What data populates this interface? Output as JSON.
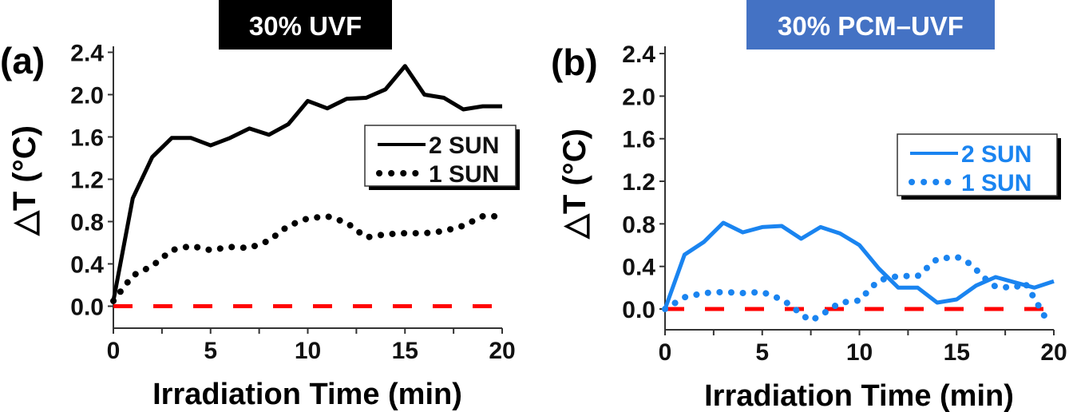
{
  "chart_data": [
    {
      "type": "line",
      "panel_label": "(a)",
      "title": "30% UVF",
      "title_bg": "#000000",
      "title_color": "#ffffff",
      "xlabel": "Irradiation Time (min)",
      "ylabel": "△T (°C)",
      "xlim": [
        0,
        20
      ],
      "ylim": [
        -0.2,
        2.45
      ],
      "xticks": [
        0,
        5,
        10,
        15,
        20
      ],
      "xtick_labels": [
        "0",
        "5",
        "10",
        "15",
        "20"
      ],
      "yticks": [
        0.0,
        0.4,
        0.8,
        1.2,
        1.6,
        2.0,
        2.4
      ],
      "ytick_labels": [
        "0.0",
        "0.4",
        "0.8",
        "1.2",
        "1.6",
        "2.0",
        "2.4"
      ],
      "grid": false,
      "legend_position": "upper-right",
      "reference_line": {
        "y": 0.0,
        "color": "#ff0000",
        "style": "dashed"
      },
      "series": [
        {
          "name": "2 SUN",
          "style": "solid",
          "color": "#000000",
          "x": [
            0,
            1,
            2,
            3,
            4,
            5,
            6,
            7,
            8,
            9,
            10,
            11,
            12,
            13,
            14,
            15,
            16,
            17,
            18,
            19,
            20
          ],
          "y": [
            0.05,
            1.02,
            1.41,
            1.59,
            1.59,
            1.52,
            1.59,
            1.68,
            1.62,
            1.72,
            1.94,
            1.87,
            1.96,
            1.97,
            2.05,
            2.27,
            2.0,
            1.97,
            1.86,
            1.89,
            1.89
          ]
        },
        {
          "name": "1 SUN",
          "style": "dotted",
          "color": "#000000",
          "x": [
            0,
            1,
            2,
            3,
            4,
            5,
            6,
            7,
            8,
            9,
            10,
            11,
            12,
            13,
            14,
            15,
            16,
            17,
            18,
            19,
            20
          ],
          "y": [
            0.05,
            0.29,
            0.38,
            0.53,
            0.57,
            0.53,
            0.56,
            0.55,
            0.62,
            0.76,
            0.83,
            0.85,
            0.79,
            0.65,
            0.68,
            0.69,
            0.69,
            0.71,
            0.76,
            0.85,
            0.85
          ]
        }
      ]
    },
    {
      "type": "line",
      "panel_label": "(b)",
      "title": "30% PCM–UVF",
      "title_bg": "#4472c4",
      "title_color": "#ffffff",
      "xlabel": "Irradiation Time (min)",
      "ylabel": "△T (°C)",
      "xlim": [
        0,
        20
      ],
      "ylim": [
        -0.2,
        2.45
      ],
      "xticks": [
        0,
        5,
        10,
        15,
        20
      ],
      "xtick_labels": [
        "0",
        "5",
        "10",
        "15",
        "20"
      ],
      "yticks": [
        0.0,
        0.4,
        0.8,
        1.2,
        1.6,
        2.0,
        2.4
      ],
      "ytick_labels": [
        "0.0",
        "0.4",
        "0.8",
        "1.2",
        "1.6",
        "2.0",
        "2.4"
      ],
      "grid": false,
      "legend_position": "right",
      "reference_line": {
        "y": 0.0,
        "color": "#ff0000",
        "style": "dashed"
      },
      "series": [
        {
          "name": "2 SUN",
          "style": "solid",
          "color": "#1a84f0",
          "x": [
            0,
            1,
            2,
            3,
            4,
            5,
            6,
            7,
            8,
            9,
            10,
            11,
            12,
            13,
            14,
            15,
            16,
            17,
            18,
            19,
            20
          ],
          "y": [
            0.0,
            0.51,
            0.63,
            0.81,
            0.72,
            0.77,
            0.78,
            0.66,
            0.77,
            0.71,
            0.6,
            0.38,
            0.2,
            0.2,
            0.06,
            0.09,
            0.22,
            0.3,
            0.25,
            0.2,
            0.26
          ]
        },
        {
          "name": "1 SUN",
          "style": "dotted",
          "color": "#1a84f0",
          "x": [
            0,
            1,
            2,
            3,
            4,
            5,
            6,
            6.5,
            7,
            7.5,
            8,
            8.5,
            9,
            10,
            10.5,
            11,
            12,
            13,
            14,
            15,
            15.5,
            16,
            16.5,
            17,
            18,
            18.5,
            19,
            19.5,
            20
          ],
          "y": [
            0.0,
            0.11,
            0.15,
            0.16,
            0.15,
            0.16,
            0.09,
            0.03,
            -0.05,
            -0.11,
            -0.06,
            0.0,
            0.06,
            0.08,
            0.18,
            0.27,
            0.31,
            0.31,
            0.47,
            0.49,
            0.45,
            0.37,
            0.28,
            0.21,
            0.2,
            0.25,
            0.1,
            -0.06,
            -0.11
          ]
        }
      ]
    }
  ]
}
